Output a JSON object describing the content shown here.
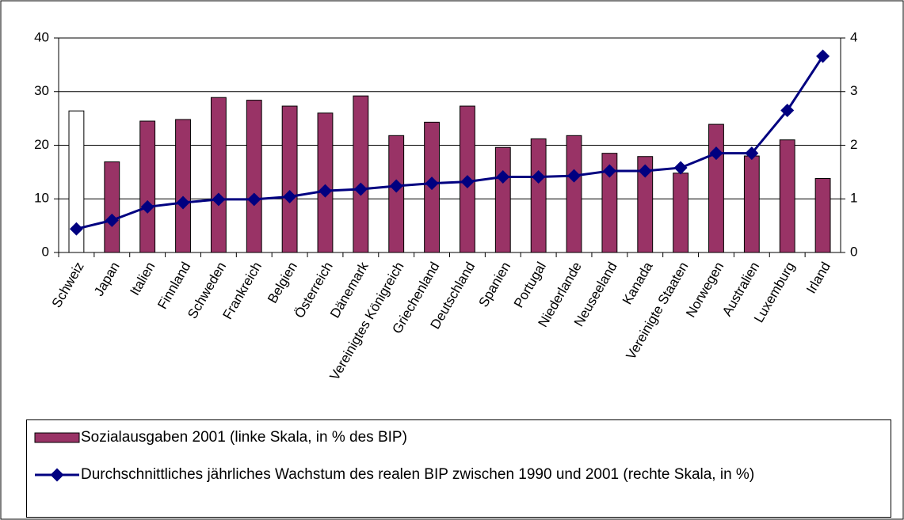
{
  "chart_data": {
    "type": "bar-line",
    "categories": [
      "Schweiz",
      "Japan",
      "Italien",
      "Finnland",
      "Schweden",
      "Frankreich",
      "Belgien",
      "Österreich",
      "Dänemark",
      "Vereinigtes Königreich",
      "Griechenland",
      "Deutschland",
      "Spanien",
      "Portugal",
      "Niederlande",
      "Neuseeland",
      "Kanada",
      "Vereinigte Staaten",
      "Norwegen",
      "Australien",
      "Luxemburg",
      "Irland"
    ],
    "series": [
      {
        "name": "Sozialausgaben 2001 (linke Skala, in % des BIP)",
        "type": "bar",
        "color": "#993366",
        "colors": [
          "#ffffff",
          "#993366",
          "#993366",
          "#993366",
          "#993366",
          "#993366",
          "#993366",
          "#993366",
          "#993366",
          "#993366",
          "#993366",
          "#993366",
          "#993366",
          "#993366",
          "#993366",
          "#993366",
          "#993366",
          "#993366",
          "#993366",
          "#993366",
          "#993366",
          "#993366"
        ],
        "values": [
          26.4,
          16.9,
          24.5,
          24.8,
          28.9,
          28.4,
          27.3,
          26.0,
          29.2,
          21.8,
          24.3,
          27.3,
          19.6,
          21.2,
          21.8,
          18.5,
          17.9,
          14.8,
          23.9,
          18.0,
          21.0,
          13.8
        ]
      },
      {
        "name": "Durchschnittliches jährliches Wachstum des realen BIP zwischen 1990 und 2001 (rechte Skala, in %)",
        "type": "line",
        "axis": "y2",
        "color": "#000080",
        "values": [
          0.44,
          0.6,
          0.85,
          0.93,
          0.99,
          0.99,
          1.04,
          1.15,
          1.18,
          1.24,
          1.29,
          1.32,
          1.41,
          1.41,
          1.43,
          1.52,
          1.52,
          1.58,
          1.85,
          1.85,
          2.65,
          3.66
        ]
      }
    ],
    "ylim": [
      0,
      40
    ],
    "yticks": [
      0,
      10,
      20,
      30,
      40
    ],
    "y2lim": [
      0,
      4
    ],
    "y2ticks": [
      0,
      1,
      2,
      3,
      4
    ],
    "grid": true
  }
}
